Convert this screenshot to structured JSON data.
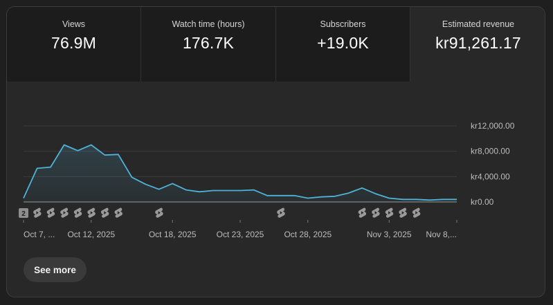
{
  "metrics": [
    {
      "label": "Views",
      "value": "76.9M"
    },
    {
      "label": "Watch time (hours)",
      "value": "176.7K"
    },
    {
      "label": "Subscribers",
      "value": "+19.0K"
    },
    {
      "label": "Estimated revenue",
      "value": "kr91,261.17"
    }
  ],
  "active_metric": "Estimated revenue",
  "chart_data": {
    "type": "area",
    "metric": "Estimated revenue",
    "x": [
      "Oct 7",
      "Oct 8",
      "Oct 9",
      "Oct 10",
      "Oct 11",
      "Oct 12",
      "Oct 13",
      "Oct 14",
      "Oct 15",
      "Oct 16",
      "Oct 17",
      "Oct 18",
      "Oct 19",
      "Oct 20",
      "Oct 21",
      "Oct 22",
      "Oct 23",
      "Oct 24",
      "Oct 25",
      "Oct 26",
      "Oct 27",
      "Oct 28",
      "Oct 29",
      "Oct 30",
      "Oct 31",
      "Nov 1",
      "Nov 2",
      "Nov 3",
      "Nov 4",
      "Nov 5",
      "Nov 6",
      "Nov 7",
      "Nov 8"
    ],
    "values": [
      600,
      5300,
      5500,
      9000,
      8100,
      9000,
      7400,
      7500,
      3900,
      2800,
      2000,
      2900,
      1900,
      1600,
      1800,
      1800,
      1800,
      1900,
      1000,
      1000,
      1000,
      600,
      800,
      900,
      1400,
      2200,
      1300,
      600,
      400,
      400,
      300,
      400,
      400
    ],
    "ylim": [
      0,
      12000
    ],
    "y_ticks": [
      "kr12,000.00",
      "kr8,000.00",
      "kr4,000.00",
      "kr0.00"
    ],
    "y_tick_values": [
      12000,
      8000,
      4000,
      0
    ],
    "x_ticks": [
      {
        "label": "Oct 7, ...",
        "index": 0
      },
      {
        "label": "Oct 12, 2025",
        "index": 5
      },
      {
        "label": "Oct 18, 2025",
        "index": 11
      },
      {
        "label": "Oct 23, 2025",
        "index": 16
      },
      {
        "label": "Oct 28, 2025",
        "index": 21
      },
      {
        "label": "Nov 3, 2025",
        "index": 27
      },
      {
        "label": "Nov 8,...",
        "index": 32
      }
    ],
    "line_color": "#4fb3d9",
    "grid": true
  },
  "upload_markers": {
    "count_badge": "2",
    "count_badge_index": 0,
    "shorts_icon_indices": [
      1,
      2,
      3,
      4,
      5,
      6,
      7,
      10,
      19,
      25,
      26,
      27,
      28,
      29
    ],
    "icon": "shorts-icon"
  },
  "see_more_label": "See more"
}
